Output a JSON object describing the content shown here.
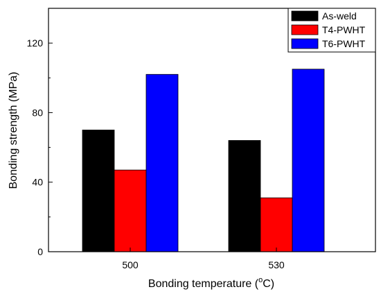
{
  "chart_data": {
    "type": "bar",
    "title": "",
    "xlabel": "Bonding temperature (",
    "xlabel_degree": "o",
    "xlabel_unit": "C)",
    "ylabel": "Bonding strength (MPa)",
    "categories": [
      "500",
      "530"
    ],
    "series": [
      {
        "name": "As-weld",
        "color": "#000000",
        "values": [
          70,
          64
        ]
      },
      {
        "name": "T4-PWHT",
        "color": "#ff0000",
        "values": [
          47,
          31
        ]
      },
      {
        "name": "T6-PWHT",
        "color": "#0000ff",
        "values": [
          102,
          105
        ]
      }
    ],
    "ylim": [
      0,
      140
    ],
    "yticks": [
      0,
      40,
      80,
      120
    ],
    "grid": false,
    "legend_position": "top-right"
  }
}
